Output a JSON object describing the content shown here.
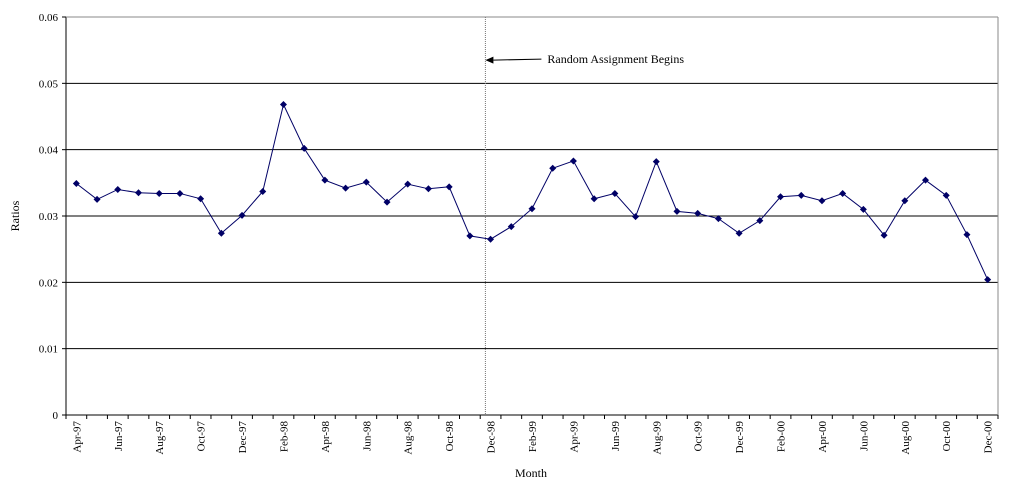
{
  "chart_data": {
    "type": "line",
    "title": "",
    "xlabel": "Month",
    "ylabel": "Ratios",
    "ylim": [
      0,
      0.06
    ],
    "yticks": [
      0,
      0.01,
      0.02,
      0.03,
      0.04,
      0.05,
      0.06
    ],
    "ytick_labels": [
      "0",
      "0.01",
      "0.02",
      "0.03",
      "0.04",
      "0.05",
      "0.06"
    ],
    "grid": "horizontal",
    "legend": null,
    "x": [
      "Apr-97",
      "May-97",
      "Jun-97",
      "Jul-97",
      "Aug-97",
      "Sep-97",
      "Oct-97",
      "Nov-97",
      "Dec-97",
      "Jan-98",
      "Feb-98",
      "Mar-98",
      "Apr-98",
      "May-98",
      "Jun-98",
      "Jul-98",
      "Aug-98",
      "Sep-98",
      "Oct-98",
      "Nov-98",
      "Dec-98",
      "Jan-99",
      "Feb-99",
      "Mar-99",
      "Apr-99",
      "May-99",
      "Jun-99",
      "Jul-99",
      "Aug-99",
      "Sep-99",
      "Oct-99",
      "Nov-99",
      "Dec-99",
      "Jan-00",
      "Feb-00",
      "Mar-00",
      "Apr-00",
      "May-00",
      "Jun-00",
      "Jul-00",
      "Aug-00",
      "Sep-00",
      "Oct-00",
      "Nov-00",
      "Dec-00"
    ],
    "xtick_labels": [
      "Apr-97",
      "Jun-97",
      "Aug-97",
      "Oct-97",
      "Dec-97",
      "Feb-98",
      "Apr-98",
      "Jun-98",
      "Aug-98",
      "Oct-98",
      "Dec-98",
      "Feb-99",
      "Apr-99",
      "Jun-99",
      "Aug-99",
      "Oct-99",
      "Dec-99",
      "Feb-00",
      "Apr-00",
      "Jun-00",
      "Aug-00",
      "Oct-00",
      "Dec-00"
    ],
    "series": [
      {
        "name": "Ratios",
        "color": "#000066",
        "marker": "diamond",
        "values": [
          0.0349,
          0.0325,
          0.034,
          0.0335,
          0.0334,
          0.0334,
          0.0326,
          0.0274,
          0.0301,
          0.0337,
          0.0468,
          0.0402,
          0.0354,
          0.0342,
          0.0351,
          0.0321,
          0.0348,
          0.0341,
          0.0344,
          0.027,
          0.0265,
          0.0284,
          0.0311,
          0.0372,
          0.0383,
          0.0326,
          0.0334,
          0.0299,
          0.0382,
          0.0307,
          0.0304,
          0.0296,
          0.0274,
          0.0293,
          0.0329,
          0.0331,
          0.0323,
          0.0334,
          0.031,
          0.0271,
          0.0323,
          0.0354,
          0.0331,
          0.0272,
          0.0204
        ]
      }
    ],
    "annotations": [
      {
        "type": "vertical-line",
        "style": "dotted",
        "at": "Dec-98"
      },
      {
        "type": "arrow-text",
        "text": "Random Assignment Begins",
        "points_to": "Dec-98",
        "y": 0.0535
      }
    ]
  }
}
